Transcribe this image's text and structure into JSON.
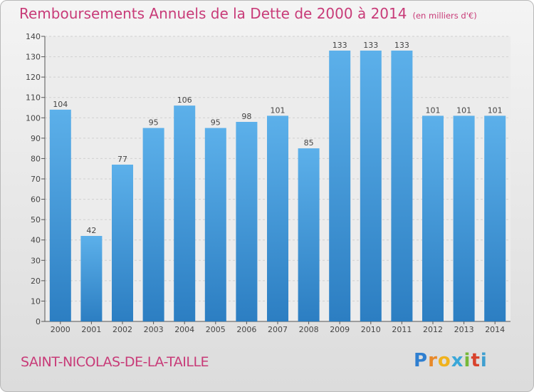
{
  "header": {
    "title": "Remboursements Annuels de la Dette de 2000 à 2014",
    "unit_note": "(en milliers d'€)"
  },
  "footer": {
    "commune": "SAINT-NICOLAS-DE-LA-TAILLE",
    "logo_text": "Proxiti"
  },
  "colors": {
    "title": "#c83b78",
    "bar_top": "#5cb0ea",
    "bar_bottom": "#2c7ec2",
    "grid": "#d0d0d0",
    "axis": "#555555"
  },
  "chart_data": {
    "type": "bar",
    "title": "Remboursements Annuels de la Dette de 2000 à 2014",
    "subtitle": "(en milliers d'€)",
    "xlabel": "",
    "ylabel": "",
    "categories": [
      "2000",
      "2001",
      "2002",
      "2003",
      "2004",
      "2005",
      "2006",
      "2007",
      "2008",
      "2009",
      "2010",
      "2011",
      "2012",
      "2013",
      "2014"
    ],
    "values": [
      104,
      42,
      77,
      95,
      106,
      95,
      98,
      101,
      85,
      133,
      133,
      133,
      101,
      101,
      101
    ],
    "ylim": [
      0,
      140
    ],
    "yticks": [
      0,
      10,
      20,
      30,
      40,
      50,
      60,
      70,
      80,
      90,
      100,
      110,
      120,
      130,
      140
    ],
    "grid": true,
    "data_labels": true
  }
}
